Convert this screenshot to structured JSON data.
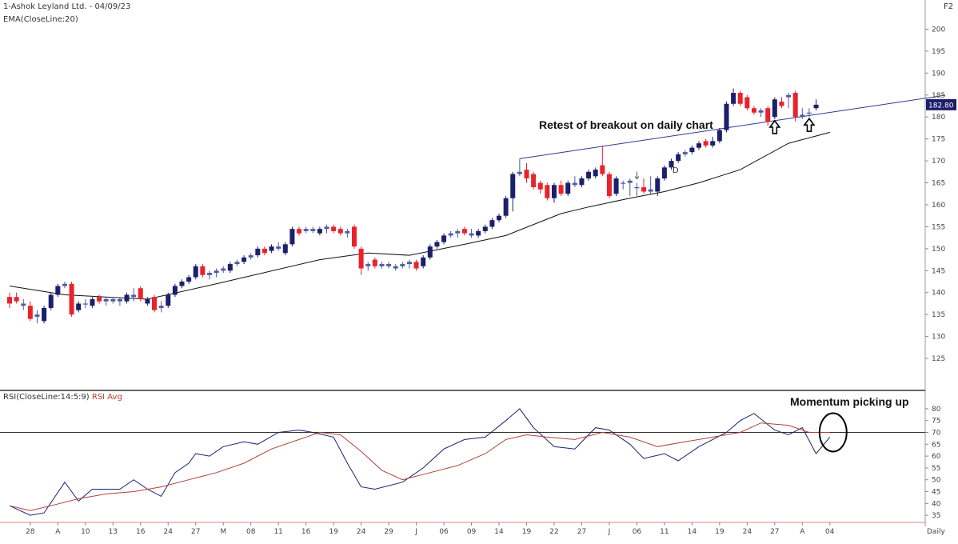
{
  "header": {
    "title": "1-Ashok Leyland Ltd. - 04/09/23",
    "indicator": "EMA(CloseLine:20)",
    "corner": "F2"
  },
  "rsi_header": {
    "label": "RSI(CloseLine:14:5:9)",
    "avg_label": "RSI Avg"
  },
  "annotations": {
    "retest": "Retest of breakout on daily chart",
    "momentum": "Momentum picking up",
    "d_marker": "D"
  },
  "colors": {
    "bull": "#1c1f6b",
    "bear": "#e8232c",
    "doji": "#4d5aa0",
    "ema": "#111111",
    "trendline": "#2f3a8c",
    "rsi": "#1b2070",
    "rsi_avg": "#b0423a",
    "price_tag_bg": "#1c1f6b",
    "price_tag_text": "#ffffff"
  },
  "chart_data": [
    {
      "type": "candlestick",
      "title": "1-Ashok Leyland Ltd. - 04/09/23",
      "yticks": [
        125,
        130,
        135,
        140,
        145,
        150,
        155,
        160,
        165,
        170,
        175,
        180,
        185,
        190,
        195,
        200
      ],
      "ylim": [
        121,
        203
      ],
      "last_price_label": "182.80",
      "last_price": 182.8,
      "xtick_labels": [
        "28",
        "A",
        "10",
        "13",
        "16",
        "24",
        "27",
        "M",
        "08",
        "11",
        "16",
        "19",
        "24",
        "29",
        "J",
        "06",
        "09",
        "14",
        "19",
        "22",
        "27",
        "J",
        "06",
        "11",
        "14",
        "19",
        "24",
        "27",
        "A",
        "04"
      ],
      "xtick_candle_index": [
        3,
        7,
        11,
        15,
        19,
        23,
        27,
        31,
        35,
        39,
        43,
        47,
        51,
        55,
        59,
        63,
        67,
        71,
        75,
        79,
        83,
        87,
        91,
        95,
        99,
        103,
        107,
        111,
        115,
        119
      ],
      "x_axis_right_label": "Daily",
      "candles": [
        {
          "o": 139.0,
          "h": 140.0,
          "l": 136.5,
          "c": 137.5
        },
        {
          "o": 139.0,
          "h": 140.0,
          "l": 137.5,
          "c": 138.0
        },
        {
          "o": 137.5,
          "h": 138.5,
          "l": 136.0,
          "c": 137.0
        },
        {
          "o": 137.0,
          "h": 138.0,
          "l": 133.5,
          "c": 134.0
        },
        {
          "o": 134.5,
          "h": 136.0,
          "l": 133.0,
          "c": 135.0
        },
        {
          "o": 133.5,
          "h": 137.0,
          "l": 133.0,
          "c": 136.5
        },
        {
          "o": 136.5,
          "h": 140.0,
          "l": 136.0,
          "c": 139.5
        },
        {
          "o": 139.5,
          "h": 142.0,
          "l": 139.0,
          "c": 141.5
        },
        {
          "o": 141.5,
          "h": 142.5,
          "l": 141.0,
          "c": 142.0
        },
        {
          "o": 142.0,
          "h": 142.5,
          "l": 134.5,
          "c": 135.0
        },
        {
          "o": 136.0,
          "h": 138.0,
          "l": 135.5,
          "c": 137.5
        },
        {
          "o": 137.5,
          "h": 138.5,
          "l": 136.5,
          "c": 137.5
        },
        {
          "o": 137.0,
          "h": 139.0,
          "l": 136.5,
          "c": 138.5
        },
        {
          "o": 139.0,
          "h": 139.5,
          "l": 137.5,
          "c": 138.0
        },
        {
          "o": 138.5,
          "h": 139.0,
          "l": 137.0,
          "c": 138.0
        },
        {
          "o": 138.0,
          "h": 139.0,
          "l": 137.5,
          "c": 138.5
        },
        {
          "o": 138.5,
          "h": 139.0,
          "l": 137.0,
          "c": 138.0
        },
        {
          "o": 138.0,
          "h": 140.0,
          "l": 137.5,
          "c": 139.5
        },
        {
          "o": 139.5,
          "h": 141.0,
          "l": 138.0,
          "c": 139.0
        },
        {
          "o": 141.0,
          "h": 141.5,
          "l": 138.0,
          "c": 138.5
        },
        {
          "o": 137.5,
          "h": 139.0,
          "l": 137.0,
          "c": 138.5
        },
        {
          "o": 139.0,
          "h": 139.5,
          "l": 135.5,
          "c": 136.0
        },
        {
          "o": 137.0,
          "h": 138.0,
          "l": 135.5,
          "c": 136.5
        },
        {
          "o": 137.0,
          "h": 140.0,
          "l": 136.5,
          "c": 139.5
        },
        {
          "o": 139.5,
          "h": 142.0,
          "l": 139.0,
          "c": 141.5
        },
        {
          "o": 141.5,
          "h": 143.0,
          "l": 141.0,
          "c": 142.5
        },
        {
          "o": 142.5,
          "h": 144.0,
          "l": 142.0,
          "c": 143.5
        },
        {
          "o": 143.5,
          "h": 146.5,
          "l": 143.0,
          "c": 146.0
        },
        {
          "o": 146.0,
          "h": 146.5,
          "l": 143.5,
          "c": 144.0
        },
        {
          "o": 144.0,
          "h": 145.0,
          "l": 143.0,
          "c": 144.5
        },
        {
          "o": 144.5,
          "h": 145.5,
          "l": 143.5,
          "c": 145.0
        },
        {
          "o": 145.0,
          "h": 146.0,
          "l": 144.5,
          "c": 145.5
        },
        {
          "o": 145.0,
          "h": 147.0,
          "l": 144.5,
          "c": 146.5
        },
        {
          "o": 146.5,
          "h": 147.5,
          "l": 146.0,
          "c": 147.0
        },
        {
          "o": 147.0,
          "h": 148.5,
          "l": 146.5,
          "c": 148.0
        },
        {
          "o": 148.0,
          "h": 149.0,
          "l": 147.5,
          "c": 148.5
        },
        {
          "o": 148.5,
          "h": 150.5,
          "l": 148.0,
          "c": 150.0
        },
        {
          "o": 150.0,
          "h": 150.5,
          "l": 148.5,
          "c": 149.0
        },
        {
          "o": 149.5,
          "h": 151.0,
          "l": 149.0,
          "c": 150.5
        },
        {
          "o": 150.5,
          "h": 151.5,
          "l": 149.5,
          "c": 150.0
        },
        {
          "o": 149.0,
          "h": 151.5,
          "l": 148.5,
          "c": 151.0
        },
        {
          "o": 151.0,
          "h": 155.0,
          "l": 150.5,
          "c": 154.5
        },
        {
          "o": 154.5,
          "h": 155.0,
          "l": 153.0,
          "c": 153.5
        },
        {
          "o": 154.0,
          "h": 155.0,
          "l": 153.5,
          "c": 154.5
        },
        {
          "o": 154.5,
          "h": 155.0,
          "l": 153.5,
          "c": 154.0
        },
        {
          "o": 153.5,
          "h": 155.0,
          "l": 153.0,
          "c": 154.5
        },
        {
          "o": 154.5,
          "h": 155.5,
          "l": 153.5,
          "c": 155.0
        },
        {
          "o": 155.0,
          "h": 155.5,
          "l": 153.5,
          "c": 154.0
        },
        {
          "o": 154.5,
          "h": 155.0,
          "l": 153.0,
          "c": 153.5
        },
        {
          "o": 153.5,
          "h": 154.5,
          "l": 152.5,
          "c": 154.0
        },
        {
          "o": 155.0,
          "h": 155.5,
          "l": 150.0,
          "c": 150.5
        },
        {
          "o": 150.0,
          "h": 150.5,
          "l": 144.0,
          "c": 145.5
        },
        {
          "o": 146.0,
          "h": 147.0,
          "l": 145.0,
          "c": 146.5
        },
        {
          "o": 147.5,
          "h": 148.0,
          "l": 145.5,
          "c": 146.0
        },
        {
          "o": 146.5,
          "h": 147.0,
          "l": 145.5,
          "c": 146.0
        },
        {
          "o": 146.0,
          "h": 147.0,
          "l": 145.5,
          "c": 146.5
        },
        {
          "o": 146.0,
          "h": 146.5,
          "l": 145.0,
          "c": 145.5
        },
        {
          "o": 146.0,
          "h": 147.0,
          "l": 145.5,
          "c": 146.5
        },
        {
          "o": 146.5,
          "h": 147.5,
          "l": 145.5,
          "c": 147.0
        },
        {
          "o": 147.0,
          "h": 147.5,
          "l": 145.0,
          "c": 145.5
        },
        {
          "o": 146.0,
          "h": 148.5,
          "l": 145.5,
          "c": 148.0
        },
        {
          "o": 148.0,
          "h": 151.0,
          "l": 147.5,
          "c": 150.5
        },
        {
          "o": 150.5,
          "h": 152.0,
          "l": 150.0,
          "c": 151.5
        },
        {
          "o": 151.5,
          "h": 153.5,
          "l": 151.0,
          "c": 153.0
        },
        {
          "o": 153.0,
          "h": 154.0,
          "l": 152.5,
          "c": 153.5
        },
        {
          "o": 153.5,
          "h": 154.5,
          "l": 152.5,
          "c": 154.0
        },
        {
          "o": 154.5,
          "h": 155.0,
          "l": 153.0,
          "c": 153.5
        },
        {
          "o": 153.5,
          "h": 154.5,
          "l": 152.5,
          "c": 153.0
        },
        {
          "o": 153.0,
          "h": 154.5,
          "l": 152.5,
          "c": 154.0
        },
        {
          "o": 154.0,
          "h": 155.5,
          "l": 153.5,
          "c": 155.0
        },
        {
          "o": 155.0,
          "h": 157.0,
          "l": 154.5,
          "c": 156.5
        },
        {
          "o": 156.5,
          "h": 158.0,
          "l": 156.0,
          "c": 157.5
        },
        {
          "o": 157.5,
          "h": 162.0,
          "l": 157.0,
          "c": 161.5
        },
        {
          "o": 161.5,
          "h": 167.5,
          "l": 158.5,
          "c": 167.0
        },
        {
          "o": 167.0,
          "h": 170.5,
          "l": 166.5,
          "c": 167.5
        },
        {
          "o": 168.0,
          "h": 169.5,
          "l": 165.0,
          "c": 166.0
        },
        {
          "o": 167.0,
          "h": 167.5,
          "l": 163.5,
          "c": 164.0
        },
        {
          "o": 165.0,
          "h": 165.5,
          "l": 162.5,
          "c": 163.5
        },
        {
          "o": 164.5,
          "h": 165.0,
          "l": 161.0,
          "c": 161.5
        },
        {
          "o": 161.5,
          "h": 165.0,
          "l": 160.5,
          "c": 164.5
        },
        {
          "o": 164.5,
          "h": 165.5,
          "l": 162.0,
          "c": 162.5
        },
        {
          "o": 162.5,
          "h": 165.5,
          "l": 162.0,
          "c": 165.0
        },
        {
          "o": 165.0,
          "h": 166.5,
          "l": 164.0,
          "c": 164.5
        },
        {
          "o": 164.5,
          "h": 166.5,
          "l": 164.0,
          "c": 166.0
        },
        {
          "o": 166.0,
          "h": 168.0,
          "l": 165.5,
          "c": 167.5
        },
        {
          "o": 166.5,
          "h": 168.5,
          "l": 166.0,
          "c": 168.0
        },
        {
          "o": 169.0,
          "h": 173.5,
          "l": 166.5,
          "c": 167.0
        },
        {
          "o": 167.0,
          "h": 167.5,
          "l": 161.5,
          "c": 162.0
        },
        {
          "o": 162.5,
          "h": 166.5,
          "l": 162.0,
          "c": 166.0
        },
        {
          "o": 165.0,
          "h": 165.5,
          "l": 163.5,
          "c": 165.0
        },
        {
          "o": 165.0,
          "h": 166.0,
          "l": 162.0,
          "c": 165.5
        },
        {
          "o": 164.0,
          "h": 165.0,
          "l": 162.0,
          "c": 164.0
        },
        {
          "o": 164.0,
          "h": 166.0,
          "l": 162.5,
          "c": 163.0
        },
        {
          "o": 163.5,
          "h": 166.5,
          "l": 162.5,
          "c": 163.0
        },
        {
          "o": 163.0,
          "h": 166.5,
          "l": 162.0,
          "c": 166.0
        },
        {
          "o": 166.0,
          "h": 169.0,
          "l": 165.5,
          "c": 168.5
        },
        {
          "o": 168.5,
          "h": 170.5,
          "l": 168.0,
          "c": 170.0
        },
        {
          "o": 170.0,
          "h": 172.0,
          "l": 169.5,
          "c": 171.5
        },
        {
          "o": 171.5,
          "h": 172.5,
          "l": 171.0,
          "c": 172.0
        },
        {
          "o": 172.0,
          "h": 173.5,
          "l": 171.5,
          "c": 173.0
        },
        {
          "o": 173.0,
          "h": 174.5,
          "l": 172.5,
          "c": 174.0
        },
        {
          "o": 174.5,
          "h": 175.0,
          "l": 173.0,
          "c": 173.5
        },
        {
          "o": 173.5,
          "h": 175.5,
          "l": 173.0,
          "c": 174.5
        },
        {
          "o": 174.5,
          "h": 177.5,
          "l": 174.0,
          "c": 177.0
        },
        {
          "o": 177.0,
          "h": 183.5,
          "l": 176.5,
          "c": 183.0
        },
        {
          "o": 183.0,
          "h": 186.5,
          "l": 182.5,
          "c": 185.5
        },
        {
          "o": 185.5,
          "h": 186.0,
          "l": 182.5,
          "c": 183.0
        },
        {
          "o": 184.5,
          "h": 185.0,
          "l": 181.5,
          "c": 182.0
        },
        {
          "o": 182.0,
          "h": 182.5,
          "l": 180.5,
          "c": 181.0
        },
        {
          "o": 181.5,
          "h": 182.0,
          "l": 180.0,
          "c": 181.0
        },
        {
          "o": 182.0,
          "h": 182.5,
          "l": 178.0,
          "c": 179.0
        },
        {
          "o": 180.0,
          "h": 184.5,
          "l": 179.5,
          "c": 184.0
        },
        {
          "o": 183.5,
          "h": 184.5,
          "l": 182.0,
          "c": 182.5
        },
        {
          "o": 185.0,
          "h": 185.5,
          "l": 182.0,
          "c": 184.5
        },
        {
          "o": 185.5,
          "h": 186.0,
          "l": 179.0,
          "c": 180.0
        },
        {
          "o": 180.0,
          "h": 182.0,
          "l": 179.5,
          "c": 180.5
        },
        {
          "o": 181.0,
          "h": 182.0,
          "l": 180.0,
          "c": 181.0
        },
        {
          "o": 182.0,
          "h": 184.0,
          "l": 181.5,
          "c": 182.8
        }
      ],
      "ema_anchor_index": [
        0,
        8,
        20,
        30,
        45,
        52,
        58,
        66,
        72,
        80,
        84,
        90,
        95,
        100,
        106,
        113,
        119
      ],
      "ema_anchor_value": [
        141.5,
        139.5,
        138.5,
        142.0,
        147.5,
        149.0,
        148.5,
        151.0,
        153.0,
        158.0,
        159.5,
        161.5,
        163.0,
        165.0,
        168.0,
        174.0,
        176.5
      ],
      "trendline": {
        "from_index": 74,
        "from_value": 170.5,
        "to_index": 121,
        "to_value": 181.5
      },
      "arrow_up_indices": [
        111,
        116
      ],
      "d_marker_index": 91
    },
    {
      "type": "line",
      "title": "RSI(CloseLine:14:5:9)",
      "yticks": [
        35,
        40,
        45,
        50,
        55,
        60,
        65,
        70,
        75,
        80
      ],
      "ylim": [
        33,
        82
      ],
      "reference_line": 70,
      "series": [
        {
          "name": "RSI",
          "x": [
            0,
            3,
            5,
            8,
            10,
            12,
            16,
            18,
            20,
            22,
            24,
            26,
            27,
            29,
            31,
            34,
            36,
            39,
            42,
            44,
            47,
            49,
            51,
            53,
            57,
            60,
            63,
            66,
            69,
            72,
            74,
            76,
            79,
            82,
            85,
            87,
            90,
            92,
            95,
            97,
            100,
            104,
            106,
            108,
            111,
            113,
            115,
            117,
            119
          ],
          "y": [
            39,
            35,
            36,
            49,
            41,
            46,
            46,
            50,
            46,
            43,
            53,
            57,
            61,
            60,
            64,
            66,
            65,
            70,
            71,
            70,
            68,
            57,
            47,
            46,
            49,
            55,
            63,
            67,
            68,
            75,
            80,
            72,
            64,
            63,
            72,
            71,
            65,
            59,
            61,
            58,
            64,
            70,
            75,
            78,
            71,
            69,
            72,
            61,
            68
          ]
        },
        {
          "name": "RSI Avg",
          "x": [
            0,
            3,
            6,
            10,
            14,
            18,
            22,
            26,
            30,
            34,
            38,
            42,
            45,
            48,
            51,
            54,
            57,
            61,
            65,
            69,
            72,
            75,
            78,
            82,
            86,
            90,
            94,
            98,
            102,
            106,
            109,
            113,
            116,
            119
          ],
          "y": [
            39,
            37,
            39,
            42,
            44,
            45,
            47,
            50,
            53,
            57,
            63,
            67,
            70,
            69,
            62,
            54,
            50,
            53,
            56,
            61,
            67,
            69,
            68,
            67,
            70,
            68,
            64,
            66,
            68,
            70,
            74,
            73,
            70,
            70
          ]
        }
      ]
    }
  ]
}
